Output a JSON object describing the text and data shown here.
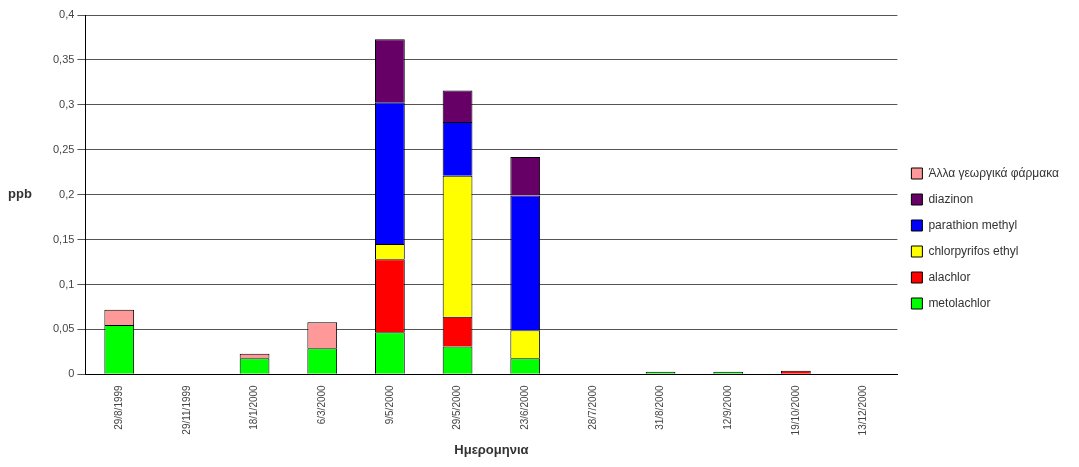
{
  "chart_data": {
    "type": "bar",
    "stacked": true,
    "xlabel": "Ημερομηνια",
    "ylabel": "ppb",
    "categories": [
      "29/8/1999",
      "29/11/1999",
      "18/1/2000",
      "6/3/2000",
      "9/5/2000",
      "29/5/2000",
      "23/6/2000",
      "28/7/2000",
      "31/8/2000",
      "12/9/2000",
      "19/10/2000",
      "13/12/2000"
    ],
    "series": [
      {
        "name": "metolachlor",
        "color": "#00ff00",
        "values": [
          0.055,
          null,
          0.018,
          0.029,
          0.047,
          0.031,
          0.018,
          null,
          0.003,
          0.003,
          null,
          null
        ]
      },
      {
        "name": "alachlor",
        "color": "#ff0000",
        "values": [
          null,
          null,
          null,
          null,
          0.081,
          0.033,
          null,
          null,
          null,
          null,
          0.004,
          null
        ]
      },
      {
        "name": "chlorpyrifos ethyl",
        "color": "#ffff00",
        "values": [
          null,
          null,
          null,
          null,
          0.017,
          0.157,
          0.031,
          null,
          null,
          null,
          null,
          null
        ]
      },
      {
        "name": "parathion methyl",
        "color": "#0000ff",
        "values": [
          null,
          null,
          null,
          null,
          0.158,
          0.06,
          0.15,
          null,
          null,
          null,
          null,
          null
        ]
      },
      {
        "name": "diazinon",
        "color": "#660066",
        "values": [
          null,
          null,
          null,
          null,
          0.07,
          0.035,
          0.043,
          null,
          null,
          null,
          null,
          null
        ]
      },
      {
        "name": "Άλλα γεωργικά φάρμακα",
        "color": "#ff9999",
        "values": [
          0.017,
          null,
          0.005,
          0.029,
          null,
          null,
          null,
          null,
          null,
          null,
          null,
          null
        ]
      }
    ],
    "ylim": [
      0,
      0.4
    ],
    "yticks": [
      0,
      {
        "value": 0.05,
        "label": "0,05"
      },
      {
        "value": 0.1,
        "label": "0,1"
      },
      {
        "value": 0.15,
        "label": "0,15"
      },
      {
        "value": 0.2,
        "label": "0,2"
      },
      {
        "value": 0.25,
        "label": "0,25"
      },
      {
        "value": 0.3,
        "label": "0,3"
      },
      {
        "value": 0.35,
        "label": "0,35"
      },
      {
        "value": 0.4,
        "label": "0,4"
      }
    ],
    "grid": "y",
    "legend": "right"
  }
}
